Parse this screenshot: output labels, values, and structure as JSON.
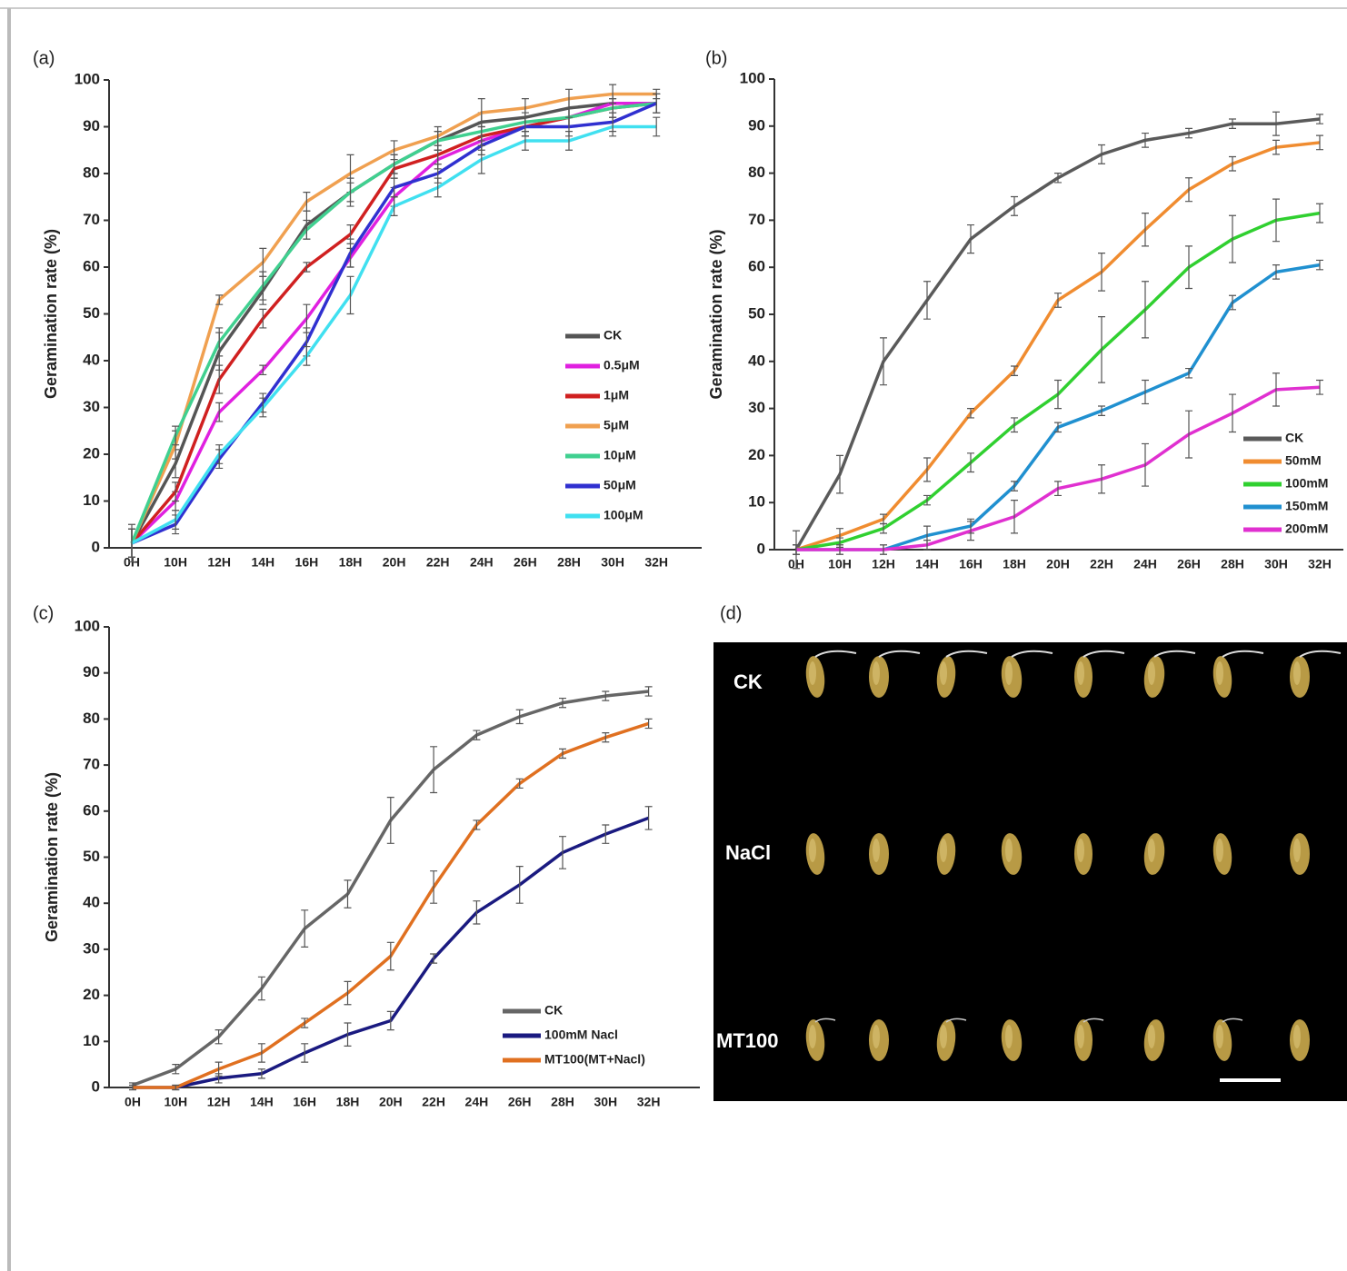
{
  "chart_data": [
    {
      "type": "line",
      "label": "(a)",
      "y_label": "Geramination rate (%)",
      "legend": "right",
      "categories": [
        "0H",
        "10H",
        "12H",
        "14H",
        "16H",
        "18H",
        "20H",
        "22H",
        "24H",
        "26H",
        "28H",
        "30H",
        "32H"
      ],
      "ylim": [
        0,
        100
      ],
      "yticks": [
        0,
        10,
        20,
        30,
        40,
        50,
        60,
        70,
        80,
        90,
        100
      ],
      "series": [
        {
          "name": "CK",
          "color": "#555555",
          "values": [
            1,
            18,
            42,
            55,
            69,
            76,
            82,
            87,
            91,
            92,
            94,
            95,
            95
          ],
          "errors": [
            4,
            3,
            4,
            3,
            3,
            3,
            2,
            2,
            2,
            2,
            2,
            2,
            2
          ]
        },
        {
          "name": "0.5μM",
          "color": "#e020e0",
          "values": [
            1,
            10,
            29,
            38,
            49,
            62,
            75,
            83,
            87,
            90,
            92,
            95,
            95
          ],
          "errors": [
            3,
            2,
            2,
            1,
            3,
            2,
            2,
            2,
            2,
            2,
            2,
            2,
            2
          ]
        },
        {
          "name": "1μM",
          "color": "#d02020",
          "values": [
            1,
            12,
            36,
            49,
            60,
            67,
            81,
            84,
            88,
            90,
            92,
            94,
            95
          ],
          "errors": [
            3,
            2,
            3,
            2,
            1,
            2,
            2,
            2,
            2,
            2,
            2,
            2,
            2
          ]
        },
        {
          "name": "5μM",
          "color": "#f0a050",
          "values": [
            1,
            22,
            53,
            61,
            74,
            80,
            85,
            88,
            93,
            94,
            96,
            97,
            97
          ],
          "errors": [
            3,
            3,
            1,
            3,
            2,
            4,
            2,
            2,
            3,
            2,
            2,
            2,
            1
          ]
        },
        {
          "name": "10μM",
          "color": "#40d090",
          "values": [
            1,
            24,
            44,
            56,
            68,
            76,
            82,
            87,
            89,
            91,
            92,
            94,
            95
          ],
          "errors": [
            3,
            2,
            3,
            3,
            2,
            2,
            2,
            2,
            2,
            2,
            2,
            2,
            2
          ]
        },
        {
          "name": "50μM",
          "color": "#3030d0",
          "values": [
            1,
            5,
            19,
            31,
            44,
            63,
            77,
            80,
            86,
            90,
            90,
            91,
            95
          ],
          "errors": [
            3,
            2,
            2,
            2,
            3,
            3,
            2,
            2,
            2,
            2,
            2,
            2,
            2
          ]
        },
        {
          "name": "100μM",
          "color": "#40e0f0",
          "values": [
            1,
            6,
            20,
            30,
            41,
            54,
            73,
            77,
            83,
            87,
            87,
            90,
            90
          ],
          "errors": [
            3,
            2,
            2,
            2,
            2,
            4,
            2,
            2,
            3,
            2,
            2,
            2,
            2
          ]
        }
      ]
    },
    {
      "type": "line",
      "label": "(b)",
      "y_label": "Geramination rate (%)",
      "legend": "lower right",
      "categories": [
        "0H",
        "10H",
        "12H",
        "14H",
        "16H",
        "18H",
        "20H",
        "22H",
        "24H",
        "26H",
        "28H",
        "30H",
        "32H"
      ],
      "ylim": [
        0,
        100
      ],
      "yticks": [
        0,
        10,
        20,
        30,
        40,
        50,
        60,
        70,
        80,
        90,
        100
      ],
      "series": [
        {
          "name": "CK",
          "color": "#5a5a5a",
          "values": [
            0,
            16,
            40,
            53,
            66,
            73,
            79,
            84,
            87,
            88.5,
            90.5,
            90.5,
            91.5
          ],
          "errors": [
            4,
            4,
            5,
            4,
            3,
            2,
            1,
            2,
            1.5,
            1,
            1,
            2.5,
            1
          ]
        },
        {
          "name": "50mM",
          "color": "#f08c30",
          "values": [
            0,
            3,
            6.5,
            17,
            29,
            38,
            53,
            59,
            68,
            76.5,
            82,
            85.5,
            86.5
          ],
          "errors": [
            1,
            1.5,
            1,
            2.5,
            1,
            1,
            1.5,
            4,
            3.5,
            2.5,
            1.5,
            1.5,
            1.5
          ]
        },
        {
          "name": "100mM",
          "color": "#30d030",
          "values": [
            0,
            1.5,
            4.5,
            10.5,
            18.5,
            26.5,
            33,
            42.5,
            51,
            60,
            66,
            70,
            71.5
          ],
          "errors": [
            1,
            1,
            1,
            1,
            2,
            1.5,
            3,
            7,
            6,
            4.5,
            5,
            4.5,
            2
          ]
        },
        {
          "name": "150mM",
          "color": "#2090d0",
          "values": [
            0,
            0,
            0,
            3,
            5,
            13.5,
            26,
            29.5,
            33.5,
            37.5,
            52.5,
            59,
            60.5
          ],
          "errors": [
            1,
            1,
            1,
            2,
            1.5,
            1,
            1,
            1,
            2.5,
            1,
            1.5,
            1.5,
            1
          ]
        },
        {
          "name": "200mM",
          "color": "#e030d0",
          "values": [
            0,
            0,
            0,
            1,
            4,
            7,
            13,
            15,
            18,
            24.5,
            29,
            34,
            34.5
          ],
          "errors": [
            1,
            1,
            1,
            1,
            2,
            3.5,
            1.5,
            3,
            4.5,
            5,
            4,
            3.5,
            1.5
          ]
        }
      ]
    },
    {
      "type": "line",
      "label": "(c)",
      "y_label": "Geramination rate (%)",
      "legend": "lower right",
      "categories": [
        "0H",
        "10H",
        "12H",
        "14H",
        "16H",
        "18H",
        "20H",
        "22H",
        "24H",
        "26H",
        "28H",
        "30H",
        "32H"
      ],
      "ylim": [
        0,
        100
      ],
      "yticks": [
        0,
        10,
        20,
        30,
        40,
        50,
        60,
        70,
        80,
        90,
        100
      ],
      "series": [
        {
          "name": "CK",
          "color": "#666666",
          "values": [
            0.5,
            4,
            11,
            21.5,
            34.5,
            42,
            58,
            69,
            76.5,
            80.5,
            83.5,
            85,
            86
          ],
          "errors": [
            0.5,
            1,
            1.5,
            2.5,
            4,
            3,
            5,
            5,
            1,
            1.5,
            1,
            1,
            1
          ]
        },
        {
          "name": "100mM Nacl",
          "color": "#1a1a80",
          "values": [
            0,
            0,
            2,
            3,
            7.5,
            11.5,
            14.5,
            28,
            38,
            44,
            51,
            55,
            58.5
          ],
          "errors": [
            0.5,
            0.5,
            1,
            1,
            2,
            2.5,
            2,
            1,
            2.5,
            4,
            3.5,
            2,
            2.5
          ]
        },
        {
          "name": "MT100(MT+Nacl)",
          "color": "#e07020",
          "values": [
            0,
            0,
            4,
            7.5,
            14,
            20.5,
            28.5,
            43.5,
            57,
            66,
            72.5,
            76,
            79
          ],
          "errors": [
            0.5,
            0.5,
            1.5,
            2,
            1,
            2.5,
            3,
            3.5,
            1,
            1,
            1,
            1,
            1
          ]
        }
      ]
    }
  ],
  "photo": {
    "label": "(d)",
    "rows": [
      "CK",
      "NaCl",
      "MT100"
    ]
  }
}
